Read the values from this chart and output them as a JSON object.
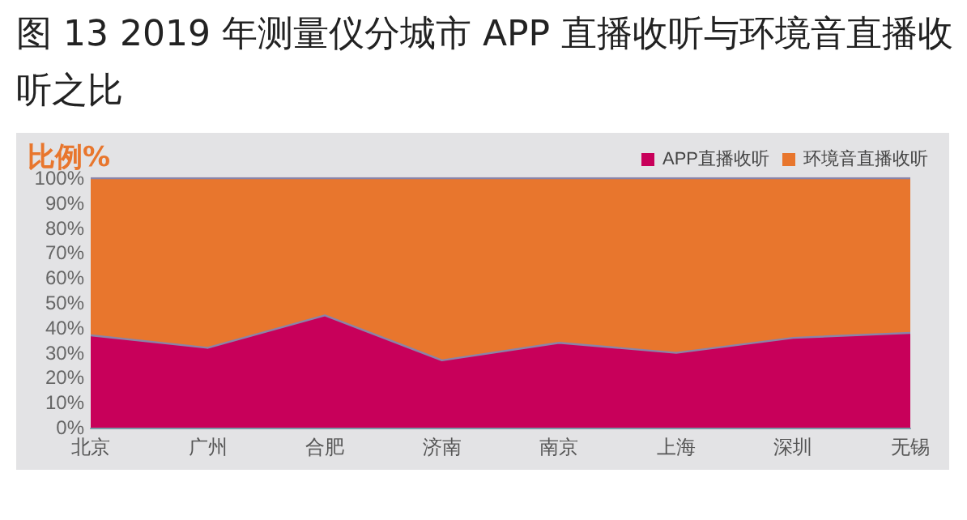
{
  "chart_data": {
    "type": "area",
    "title": "图 13 2019 年测量仪分城市 APP 直播收听与环境音直播收听之比",
    "ylabel": "比例%",
    "categories": [
      "北京",
      "广州",
      "合肥",
      "济南",
      "南京",
      "上海",
      "深圳",
      "无锡"
    ],
    "series": [
      {
        "name": "APP直播收听",
        "color": "#c8005a",
        "values": [
          37,
          32,
          45,
          27,
          34,
          30,
          36,
          38
        ]
      },
      {
        "name": "环境音直播收听",
        "color": "#e8762d",
        "values": [
          63,
          68,
          55,
          73,
          66,
          70,
          64,
          62
        ]
      }
    ],
    "stacked": true,
    "ylim": [
      0,
      100
    ],
    "yticks": [
      {
        "value": 0,
        "label": "0%"
      },
      {
        "value": 10,
        "label": "10%"
      },
      {
        "value": 20,
        "label": "20%"
      },
      {
        "value": 30,
        "label": "30%"
      },
      {
        "value": 40,
        "label": "40%"
      },
      {
        "value": 50,
        "label": "50%"
      },
      {
        "value": 60,
        "label": "60%"
      },
      {
        "value": 70,
        "label": "70%"
      },
      {
        "value": 80,
        "label": "80%"
      },
      {
        "value": 90,
        "label": "90%"
      },
      {
        "value": 100,
        "label": "100%"
      }
    ],
    "grid": false,
    "legend": "top right"
  }
}
